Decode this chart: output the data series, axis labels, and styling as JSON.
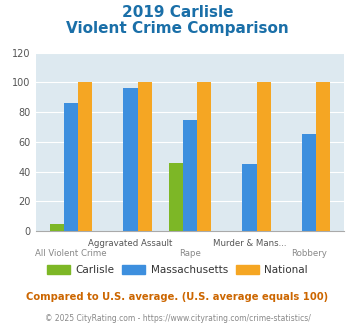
{
  "title_line1": "2019 Carlisle",
  "title_line2": "Violent Crime Comparison",
  "categories": [
    "All Violent Crime",
    "Aggravated Assault",
    "Rape",
    "Murder & Mans...",
    "Robbery"
  ],
  "carlisle": [
    5,
    0,
    46,
    0,
    0
  ],
  "massachusetts": [
    86,
    96,
    75,
    45,
    65
  ],
  "national": [
    100,
    100,
    100,
    100,
    100
  ],
  "carlisle_color": "#7db726",
  "massachusetts_color": "#3d8fde",
  "national_color": "#f5a623",
  "ylim": [
    0,
    120
  ],
  "yticks": [
    0,
    20,
    40,
    60,
    80,
    100,
    120
  ],
  "plot_bg": "#dde9f0",
  "title_color": "#1a6fa8",
  "footnote1": "Compared to U.S. average. (U.S. average equals 100)",
  "footnote2": "© 2025 CityRating.com - https://www.cityrating.com/crime-statistics/",
  "footnote1_color": "#cc6600",
  "footnote2_color": "#888888",
  "legend_label_color": "#333333"
}
